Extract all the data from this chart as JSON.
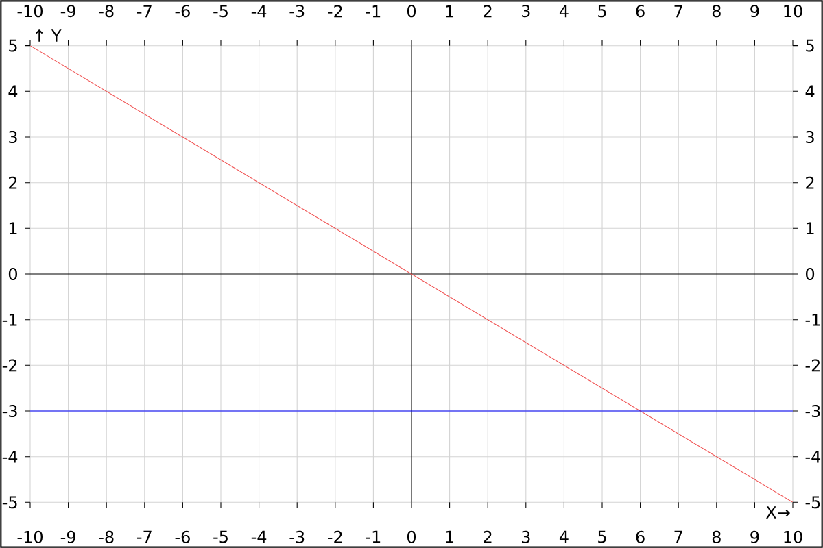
{
  "chart_data": {
    "type": "line",
    "xlabel": "X→",
    "ylabel": "↑ Y",
    "x": [
      -10,
      10
    ],
    "series": [
      {
        "color": "#f05050",
        "values": [
          5,
          -5
        ]
      },
      {
        "color": "#0000ff",
        "values": [
          -3,
          -3
        ]
      }
    ],
    "xlim": [
      -10,
      10
    ],
    "xticks": [
      -10,
      -9,
      -8,
      -7,
      -6,
      -5,
      -4,
      -3,
      -2,
      -1,
      0,
      1,
      2,
      3,
      4,
      5,
      6,
      7,
      8,
      9,
      10
    ],
    "x2lim": [
      -10,
      10
    ],
    "x2ticks": [
      -10,
      -9,
      -8,
      -7,
      -6,
      -5,
      -4,
      -3,
      -2,
      -1,
      0,
      1,
      2,
      3,
      4,
      5,
      6,
      7,
      8,
      9,
      10
    ],
    "ylim": [
      -5,
      5
    ],
    "yticks": [
      -5,
      -4,
      -3,
      -2,
      -1,
      0,
      1,
      2,
      3,
      4,
      5
    ],
    "y2lim": [
      -5,
      5
    ],
    "y2ticks": [
      -5,
      -4,
      -3,
      -2,
      -1,
      0,
      1,
      2,
      3,
      4,
      5
    ],
    "grid": true,
    "marker": "none",
    "line_style": "solid"
  }
}
